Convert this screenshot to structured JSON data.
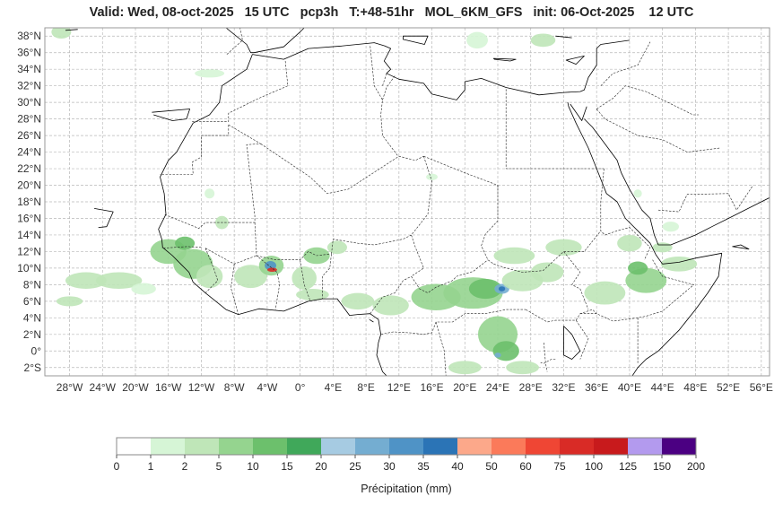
{
  "title": "Valid: Wed, 08-oct-2025   15 UTC   pcp3h   T:+48-51hr   MOL_6KM_GFS   init: 06-Oct-2025    12 UTC",
  "map": {
    "lon_range": [
      -31,
      57
    ],
    "lat_range": [
      -3,
      39
    ],
    "lat_ticks": [
      {
        "value": 38,
        "label": "38°N"
      },
      {
        "value": 36,
        "label": "36°N"
      },
      {
        "value": 34,
        "label": "34°N"
      },
      {
        "value": 32,
        "label": "32°N"
      },
      {
        "value": 30,
        "label": "30°N"
      },
      {
        "value": 28,
        "label": "28°N"
      },
      {
        "value": 26,
        "label": "26°N"
      },
      {
        "value": 24,
        "label": "24°N"
      },
      {
        "value": 22,
        "label": "22°N"
      },
      {
        "value": 20,
        "label": "20°N"
      },
      {
        "value": 18,
        "label": "18°N"
      },
      {
        "value": 16,
        "label": "16°N"
      },
      {
        "value": 14,
        "label": "14°N"
      },
      {
        "value": 12,
        "label": "12°N"
      },
      {
        "value": 10,
        "label": "10°N"
      },
      {
        "value": 8,
        "label": "8°N"
      },
      {
        "value": 6,
        "label": "6°N"
      },
      {
        "value": 4,
        "label": "4°N"
      },
      {
        "value": 2,
        "label": "2°N"
      },
      {
        "value": 0,
        "label": "0°"
      },
      {
        "value": -2,
        "label": "2°S"
      }
    ],
    "lon_ticks": [
      {
        "value": -28,
        "label": "28°W"
      },
      {
        "value": -24,
        "label": "24°W"
      },
      {
        "value": -20,
        "label": "20°W"
      },
      {
        "value": -16,
        "label": "16°W"
      },
      {
        "value": -12,
        "label": "12°W"
      },
      {
        "value": -8,
        "label": "8°W"
      },
      {
        "value": -4,
        "label": "4°W"
      },
      {
        "value": 0,
        "label": "0°"
      },
      {
        "value": 4,
        "label": "4°E"
      },
      {
        "value": 8,
        "label": "8°E"
      },
      {
        "value": 12,
        "label": "12°E"
      },
      {
        "value": 16,
        "label": "16°E"
      },
      {
        "value": 20,
        "label": "20°E"
      },
      {
        "value": 24,
        "label": "24°E"
      },
      {
        "value": 28,
        "label": "28°E"
      },
      {
        "value": 32,
        "label": "32°E"
      },
      {
        "value": 36,
        "label": "36°E"
      },
      {
        "value": 40,
        "label": "40°E"
      },
      {
        "value": 44,
        "label": "44°E"
      },
      {
        "value": 48,
        "label": "48°E"
      },
      {
        "value": 52,
        "label": "52°E"
      },
      {
        "value": 56,
        "label": "56°E"
      }
    ],
    "grid": true,
    "coastline_color": "#000000",
    "border_style": "dashed"
  },
  "precip_areas": [
    {
      "lon": -16,
      "lat": 12,
      "rx": 2.2,
      "ry": 1.5,
      "level": 3
    },
    {
      "lon": -13,
      "lat": 10.5,
      "rx": 2.4,
      "ry": 1.8,
      "level": 3
    },
    {
      "lon": -11,
      "lat": 9,
      "rx": 1.6,
      "ry": 1.4,
      "level": 2
    },
    {
      "lon": -14,
      "lat": 13,
      "rx": 1.2,
      "ry": 0.8,
      "level": 4
    },
    {
      "lon": -9.5,
      "lat": 15.5,
      "rx": 0.8,
      "ry": 0.8,
      "level": 2
    },
    {
      "lon": -6,
      "lat": 9,
      "rx": 2.0,
      "ry": 1.4,
      "level": 2
    },
    {
      "lon": -3.5,
      "lat": 10.3,
      "rx": 1.5,
      "ry": 1.2,
      "level": 3
    },
    {
      "lon": -3.6,
      "lat": 10.3,
      "rx": 0.7,
      "ry": 0.55,
      "level": 8
    },
    {
      "lon": -3.4,
      "lat": 9.8,
      "rx": 0.6,
      "ry": 0.25,
      "level": 13
    },
    {
      "lon": 0.5,
      "lat": 8.8,
      "rx": 1.5,
      "ry": 1.4,
      "level": 2
    },
    {
      "lon": 2,
      "lat": 11.5,
      "rx": 1.6,
      "ry": 1.0,
      "level": 3
    },
    {
      "lon": 4.5,
      "lat": 12.5,
      "rx": 1.2,
      "ry": 0.8,
      "level": 2
    },
    {
      "lon": 1.5,
      "lat": 6.8,
      "rx": 2.0,
      "ry": 0.7,
      "level": 2
    },
    {
      "lon": 7,
      "lat": 6,
      "rx": 2.0,
      "ry": 1.0,
      "level": 2
    },
    {
      "lon": 11,
      "lat": 5.5,
      "rx": 2.2,
      "ry": 1.2,
      "level": 2
    },
    {
      "lon": 16.5,
      "lat": 6.5,
      "rx": 3.0,
      "ry": 1.6,
      "level": 3
    },
    {
      "lon": 21,
      "lat": 7,
      "rx": 3.6,
      "ry": 1.9,
      "level": 3
    },
    {
      "lon": 22.5,
      "lat": 7.5,
      "rx": 2.0,
      "ry": 1.2,
      "level": 4
    },
    {
      "lon": 24.5,
      "lat": 7.5,
      "rx": 0.9,
      "ry": 0.6,
      "level": 7
    },
    {
      "lon": 24.5,
      "lat": 7.5,
      "rx": 0.4,
      "ry": 0.3,
      "level": 9
    },
    {
      "lon": 27,
      "lat": 8.5,
      "rx": 2.5,
      "ry": 1.3,
      "level": 2
    },
    {
      "lon": 30,
      "lat": 9.5,
      "rx": 2.0,
      "ry": 1.2,
      "level": 2
    },
    {
      "lon": 26,
      "lat": 11.5,
      "rx": 2.5,
      "ry": 1.0,
      "level": 2
    },
    {
      "lon": 32,
      "lat": 12.5,
      "rx": 2.2,
      "ry": 1.0,
      "level": 2
    },
    {
      "lon": 24,
      "lat": 2,
      "rx": 2.4,
      "ry": 2.2,
      "level": 3
    },
    {
      "lon": 25,
      "lat": 0,
      "rx": 1.6,
      "ry": 1.2,
      "level": 4
    },
    {
      "lon": 24,
      "lat": -0.5,
      "rx": 0.4,
      "ry": 0.3,
      "level": 7
    },
    {
      "lon": 27,
      "lat": -2,
      "rx": 2.0,
      "ry": 0.8,
      "level": 2
    },
    {
      "lon": 20,
      "lat": -2,
      "rx": 2.0,
      "ry": 0.8,
      "level": 2
    },
    {
      "lon": 37,
      "lat": 7,
      "rx": 2.5,
      "ry": 1.4,
      "level": 2
    },
    {
      "lon": 42,
      "lat": 8.5,
      "rx": 2.5,
      "ry": 1.5,
      "level": 3
    },
    {
      "lon": 41,
      "lat": 10,
      "rx": 1.2,
      "ry": 0.8,
      "level": 4
    },
    {
      "lon": 46,
      "lat": 10.5,
      "rx": 2.2,
      "ry": 0.9,
      "level": 2
    },
    {
      "lon": 40,
      "lat": 13,
      "rx": 1.5,
      "ry": 1.0,
      "level": 2
    },
    {
      "lon": 44,
      "lat": 12.5,
      "rx": 1.2,
      "ry": 0.6,
      "level": 2
    },
    {
      "lon": -26,
      "lat": 8.5,
      "rx": 2.5,
      "ry": 1.0,
      "level": 2
    },
    {
      "lon": -22,
      "lat": 8.5,
      "rx": 2.8,
      "ry": 1.0,
      "level": 2
    },
    {
      "lon": -28,
      "lat": 6,
      "rx": 1.6,
      "ry": 0.6,
      "level": 2
    },
    {
      "lon": -19,
      "lat": 7.5,
      "rx": 1.5,
      "ry": 0.7,
      "level": 1
    },
    {
      "lon": -11,
      "lat": 33.5,
      "rx": 1.8,
      "ry": 0.5,
      "level": 1
    },
    {
      "lon": -11,
      "lat": 19,
      "rx": 0.6,
      "ry": 0.6,
      "level": 1
    },
    {
      "lon": 21.5,
      "lat": 37.5,
      "rx": 1.3,
      "ry": 1.0,
      "level": 1
    },
    {
      "lon": 29.5,
      "lat": 37.5,
      "rx": 1.5,
      "ry": 0.8,
      "level": 2
    },
    {
      "lon": -29,
      "lat": 38.5,
      "rx": 1.2,
      "ry": 0.8,
      "level": 2
    },
    {
      "lon": 41,
      "lat": 19,
      "rx": 0.5,
      "ry": 0.5,
      "level": 1
    },
    {
      "lon": 16,
      "lat": 21,
      "rx": 0.7,
      "ry": 0.4,
      "level": 1
    },
    {
      "lon": 45,
      "lat": 15,
      "rx": 1.0,
      "ry": 0.6,
      "level": 1
    }
  ],
  "colorbar": {
    "boundaries": [
      "0",
      "1",
      "2",
      "5",
      "10",
      "15",
      "20",
      "25",
      "30",
      "35",
      "40",
      "50",
      "60",
      "75",
      "100",
      "125",
      "150",
      "200"
    ],
    "colors": [
      "#ffffff",
      "#d6f5d6",
      "#bfe6b8",
      "#95d48f",
      "#6cc06c",
      "#40a85a",
      "#a6cbe2",
      "#74add1",
      "#4f93c6",
      "#2b74b6",
      "#fca88a",
      "#fb7a5a",
      "#ef4634",
      "#d92b26",
      "#c81a1c",
      "#b39aee",
      "#4b0082"
    ],
    "label": "Précipitation (mm)"
  }
}
